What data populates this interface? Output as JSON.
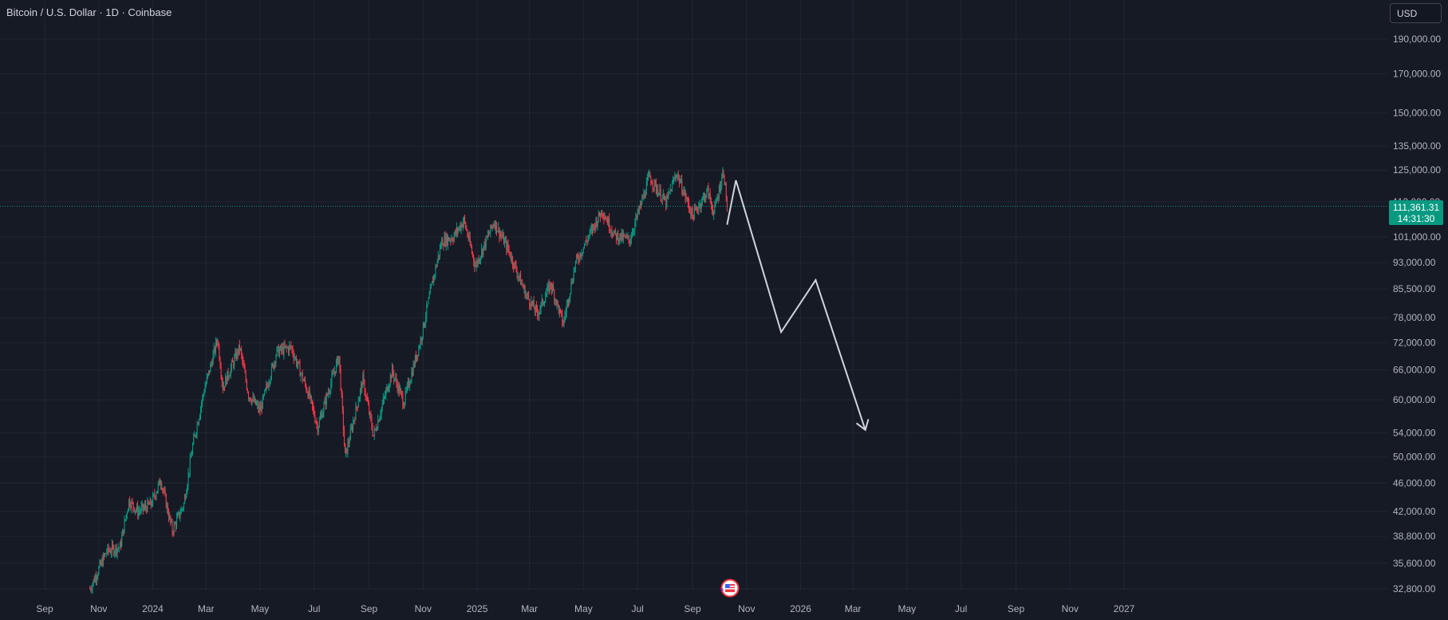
{
  "header": {
    "title": "Bitcoin / U.S. Dollar · 1D · Coinbase"
  },
  "currency_button": {
    "label": "USD"
  },
  "last_price": {
    "value": "111,361.31",
    "countdown": "14:31:30",
    "color": "#089981"
  },
  "colors": {
    "up": "#089981",
    "down": "#f23645",
    "projection": "#d1d4dc",
    "grid": "#222631"
  },
  "icons": {
    "event_flag": "us-flag-icon"
  },
  "chart_data": {
    "type": "candlestick",
    "title": "Bitcoin / U.S. Dollar · 1D · Coinbase",
    "scale": "log",
    "y_ticks": [
      "190,000.00",
      "170,000.00",
      "150,000.00",
      "135,000.00",
      "125,000.00",
      "113,000.00",
      "101,000.00",
      "93,000.00",
      "85,500.00",
      "78,000.00",
      "72,000.00",
      "66,000.00",
      "60,000.00",
      "54,000.00",
      "50,000.00",
      "46,000.00",
      "42,000.00",
      "38,800.00",
      "35,600.00",
      "32,800.00"
    ],
    "y_tick_values": [
      190000,
      170000,
      150000,
      135000,
      125000,
      113000,
      101000,
      93000,
      85500,
      78000,
      72000,
      66000,
      60000,
      54000,
      50000,
      46000,
      42000,
      38800,
      35600,
      32800
    ],
    "x_ticks": [
      {
        "label": "Sep",
        "date": "2023-09-01"
      },
      {
        "label": "Nov",
        "date": "2023-11-01"
      },
      {
        "label": "2024",
        "date": "2024-01-01"
      },
      {
        "label": "Mar",
        "date": "2024-03-01"
      },
      {
        "label": "May",
        "date": "2024-05-01"
      },
      {
        "label": "Jul",
        "date": "2024-07-01"
      },
      {
        "label": "Sep",
        "date": "2024-09-01"
      },
      {
        "label": "Nov",
        "date": "2024-11-01"
      },
      {
        "label": "2025",
        "date": "2025-01-01"
      },
      {
        "label": "Mar",
        "date": "2025-03-01"
      },
      {
        "label": "May",
        "date": "2025-05-01"
      },
      {
        "label": "Jul",
        "date": "2025-07-01"
      },
      {
        "label": "Sep",
        "date": "2025-09-01"
      },
      {
        "label": "Nov",
        "date": "2025-11-01"
      },
      {
        "label": "2026",
        "date": "2026-01-01"
      },
      {
        "label": "Mar",
        "date": "2026-03-01"
      },
      {
        "label": "May",
        "date": "2026-05-01"
      },
      {
        "label": "Jul",
        "date": "2026-07-01"
      },
      {
        "label": "Sep",
        "date": "2026-09-01"
      },
      {
        "label": "Nov",
        "date": "2026-11-01"
      },
      {
        "label": "2027",
        "date": "2027-01-01"
      }
    ],
    "price_path": [
      [
        "2023-10-22",
        32800
      ],
      [
        "2023-10-30",
        34500
      ],
      [
        "2023-11-10",
        37000
      ],
      [
        "2023-11-25",
        37500
      ],
      [
        "2023-12-05",
        43500
      ],
      [
        "2023-12-15",
        42000
      ],
      [
        "2023-12-30",
        43000
      ],
      [
        "2024-01-10",
        46500
      ],
      [
        "2024-01-23",
        39500
      ],
      [
        "2024-02-05",
        43000
      ],
      [
        "2024-02-15",
        51800
      ],
      [
        "2024-02-28",
        62000
      ],
      [
        "2024-03-05",
        66000
      ],
      [
        "2024-03-14",
        73000
      ],
      [
        "2024-03-20",
        62500
      ],
      [
        "2024-04-08",
        71000
      ],
      [
        "2024-04-18",
        61000
      ],
      [
        "2024-05-01",
        58000
      ],
      [
        "2024-05-20",
        70000
      ],
      [
        "2024-06-05",
        71000
      ],
      [
        "2024-06-25",
        61000
      ],
      [
        "2024-07-05",
        55000
      ],
      [
        "2024-07-29",
        69000
      ],
      [
        "2024-08-05",
        50000
      ],
      [
        "2024-08-25",
        64000
      ],
      [
        "2024-09-06",
        53500
      ],
      [
        "2024-09-27",
        65800
      ],
      [
        "2024-10-10",
        59500
      ],
      [
        "2024-10-29",
        72500
      ],
      [
        "2024-11-12",
        88000
      ],
      [
        "2024-11-22",
        99500
      ],
      [
        "2024-12-05",
        101000
      ],
      [
        "2024-12-17",
        106500
      ],
      [
        "2024-12-30",
        92000
      ],
      [
        "2025-01-20",
        106000
      ],
      [
        "2025-02-05",
        97000
      ],
      [
        "2025-02-25",
        84000
      ],
      [
        "2025-03-10",
        79000
      ],
      [
        "2025-03-25",
        87000
      ],
      [
        "2025-04-08",
        76500
      ],
      [
        "2025-04-22",
        93000
      ],
      [
        "2025-05-10",
        103000
      ],
      [
        "2025-05-22",
        110000
      ],
      [
        "2025-06-05",
        101500
      ],
      [
        "2025-06-22",
        100000
      ],
      [
        "2025-07-10",
        117500
      ],
      [
        "2025-07-14",
        122500
      ],
      [
        "2025-08-02",
        112500
      ],
      [
        "2025-08-14",
        124000
      ],
      [
        "2025-09-01",
        108000
      ],
      [
        "2025-09-18",
        117000
      ],
      [
        "2025-09-25",
        109000
      ],
      [
        "2025-10-06",
        125000
      ],
      [
        "2025-10-10",
        111361
      ]
    ],
    "projection": [
      [
        "2025-10-10",
        105000
      ],
      [
        "2025-10-20",
        121000
      ],
      [
        "2025-12-10",
        74500
      ],
      [
        "2026-01-18",
        88000
      ],
      [
        "2026-03-15",
        54500
      ]
    ],
    "projection_arrowhead": true,
    "last_price": 111361.31,
    "last_price_line": "dotted"
  }
}
